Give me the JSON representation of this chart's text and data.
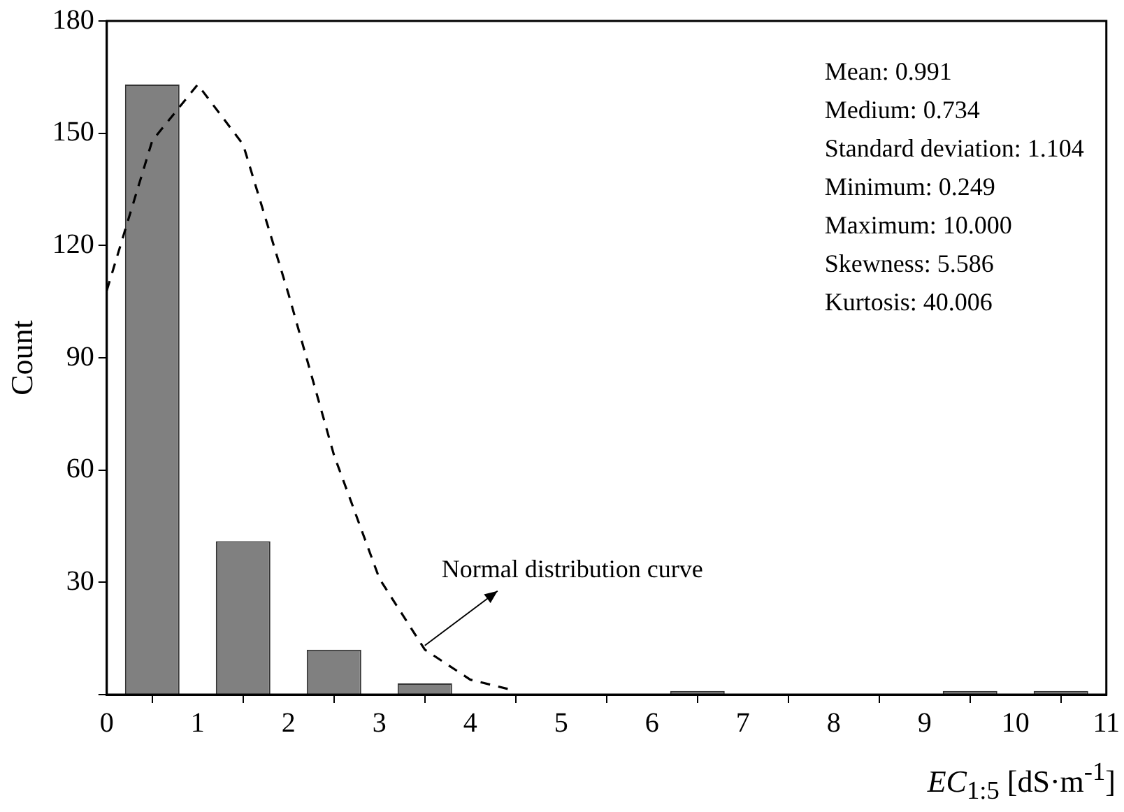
{
  "chart_data": {
    "type": "histogram",
    "xlabel": "EC$_{1:5}$ [dS·m$^{-1}$]",
    "ylabel": "Count",
    "series": [
      {
        "color": "#808080",
        "bins": [
          0,
          1,
          2,
          3,
          4,
          5,
          6,
          7,
          8,
          9,
          10,
          11
        ],
        "values": [
          163,
          41,
          12,
          3,
          0,
          0,
          1,
          0,
          0,
          1,
          1
        ]
      },
      {
        "type": "line",
        "color": "#000000",
        "line_style": "dashed",
        "marker": "none",
        "x": [
          0,
          0.5,
          1,
          1.5,
          2,
          2.5,
          3,
          3.5,
          4,
          4.5
        ],
        "values": [
          108,
          148,
          163,
          147,
          107,
          64,
          31,
          12,
          4,
          1
        ]
      }
    ],
    "xlim": [
      0,
      11
    ],
    "xticks": [
      0,
      1,
      2,
      3,
      4,
      5,
      6,
      7,
      8,
      9,
      10,
      11
    ],
    "ylim": [
      0,
      180
    ],
    "yticks": [
      {
        "value": 0,
        "label": null
      },
      30,
      60,
      90,
      120,
      150,
      180
    ],
    "grid": false,
    "annotations": [
      "Mean: 0.991",
      "Medium: 0.734",
      "Standard deviation: 1.104",
      "Minimum: 0.249",
      "Maximum: 10.000",
      "Skewness: 5.586",
      "Kurtosis: 40.006",
      {
        "text": "Normal distribution curve",
        "x": 3.5,
        "y": 12
      }
    ]
  }
}
